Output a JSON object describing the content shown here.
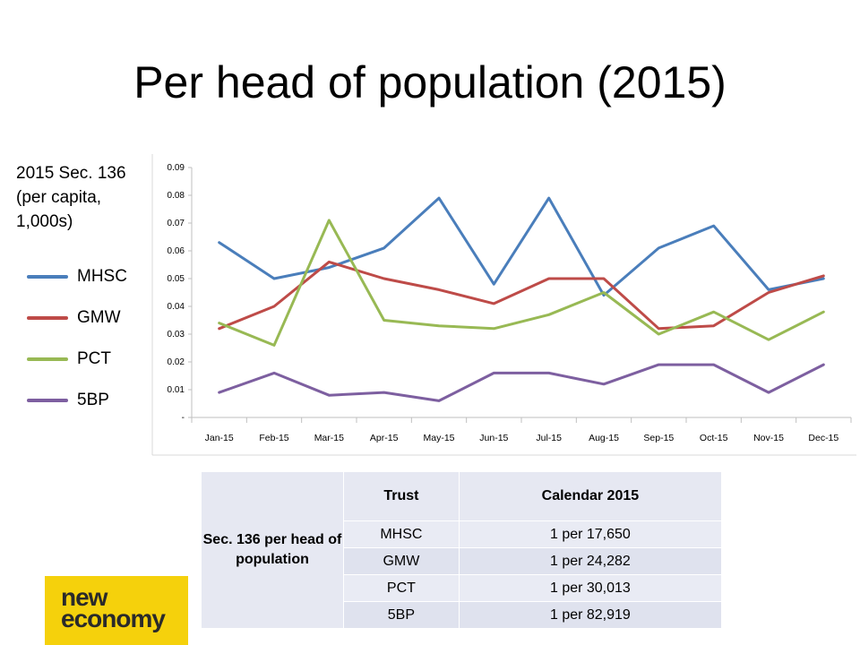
{
  "title": "Per head of population (2015)",
  "side_caption": "2015 Sec. 136 (per capita, 1,000s)",
  "colors": {
    "MHSC": "#4a7ebb",
    "GMW": "#be4b48",
    "PCT": "#98b954",
    "5BP": "#7d5fa0",
    "axis": "#bfbfbf",
    "logo_bg": "#f5d10c"
  },
  "chart_data": {
    "type": "line",
    "title": "",
    "xlabel": "",
    "ylabel": "",
    "ylim": [
      0,
      0.09
    ],
    "y_ticks": [
      "-",
      "0.01",
      "0.02",
      "0.03",
      "0.04",
      "0.05",
      "0.06",
      "0.07",
      "0.08",
      "0.09"
    ],
    "x": [
      "Jan-15",
      "Feb-15",
      "Mar-15",
      "Apr-15",
      "May-15",
      "Jun-15",
      "Jul-15",
      "Aug-15",
      "Sep-15",
      "Oct-15",
      "Nov-15",
      "Dec-15"
    ],
    "series": [
      {
        "name": "MHSC",
        "values": [
          0.063,
          0.05,
          0.054,
          0.061,
          0.079,
          0.048,
          0.079,
          0.044,
          0.061,
          0.069,
          0.046,
          0.05
        ]
      },
      {
        "name": "GMW",
        "values": [
          0.032,
          0.04,
          0.056,
          0.05,
          0.046,
          0.041,
          0.05,
          0.05,
          0.032,
          0.033,
          0.045,
          0.051
        ]
      },
      {
        "name": "PCT",
        "values": [
          0.034,
          0.026,
          0.071,
          0.035,
          0.033,
          0.032,
          0.037,
          0.045,
          0.03,
          0.038,
          0.028,
          0.038
        ]
      },
      {
        "name": "5BP",
        "values": [
          0.009,
          0.016,
          0.008,
          0.009,
          0.006,
          0.016,
          0.016,
          0.012,
          0.019,
          0.019,
          0.009,
          0.019
        ]
      }
    ],
    "legend": "left",
    "grid": false
  },
  "table": {
    "row_header": "Sec. 136 per head of population",
    "headers": [
      "Trust",
      "Calendar 2015"
    ],
    "rows": [
      [
        "MHSC",
        "1 per 17,650"
      ],
      [
        "GMW",
        "1 per 24,282"
      ],
      [
        "PCT",
        "1 per 30,013"
      ],
      [
        "5BP",
        "1 per 82,919"
      ]
    ]
  },
  "logo": {
    "line1": "new",
    "line2": "economy"
  }
}
